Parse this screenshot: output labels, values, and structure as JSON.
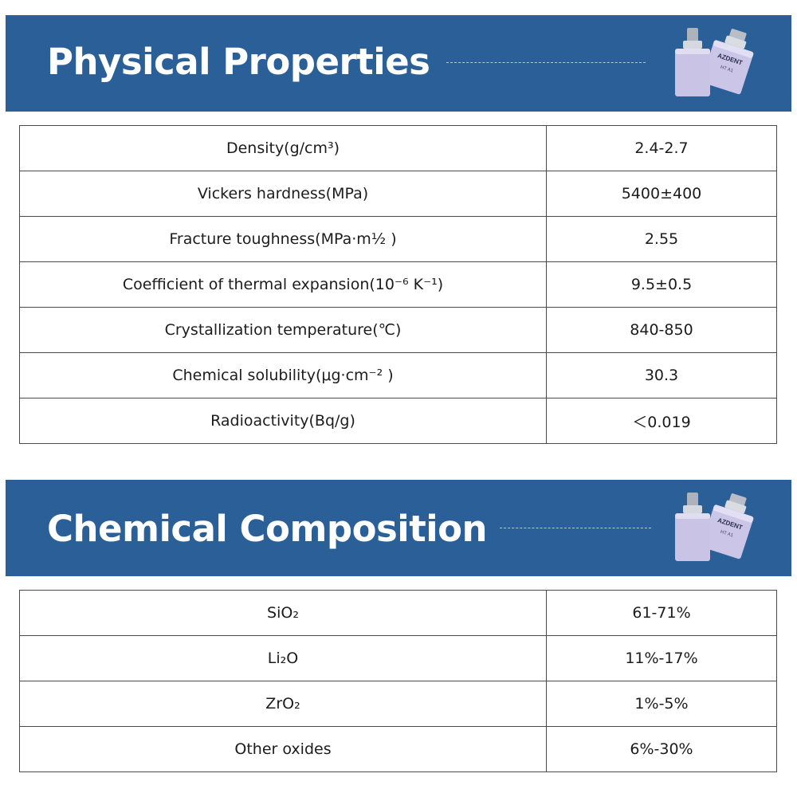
{
  "sections": {
    "physical": {
      "title": "Physical Properties",
      "rows": [
        {
          "label": "Density(g/cm³)",
          "value": "2.4-2.7"
        },
        {
          "label": "Vickers hardness(MPa)",
          "value": "5400±400"
        },
        {
          "label": "Fracture toughness(MPa·m½ )",
          "value": "2.55"
        },
        {
          "label": "Coefficient of thermal expansion(10⁻⁶ K⁻¹)",
          "value": "9.5±0.5"
        },
        {
          "label": "Crystallization temperature(℃)",
          "value": "840-850"
        },
        {
          "label": "Chemical solubility(μg·cm⁻² )",
          "value": "30.3"
        },
        {
          "label": "Radioactivity(Bq/g)",
          "value": "＜0.019"
        }
      ]
    },
    "chemical": {
      "title": "Chemical Composition",
      "rows": [
        {
          "label": "SiO₂",
          "value": "61-71%"
        },
        {
          "label": "Li₂O",
          "value": "11%-17%"
        },
        {
          "label": "ZrO₂",
          "value": "1%-5%"
        },
        {
          "label": "Other oxides",
          "value": "6%-30%"
        }
      ]
    }
  },
  "product": {
    "brand": "AZDENT",
    "shade": "HT A1"
  },
  "colors": {
    "banner": "#2a5f98",
    "block": "#c9c3e6",
    "metal": "#c8ccd2"
  }
}
